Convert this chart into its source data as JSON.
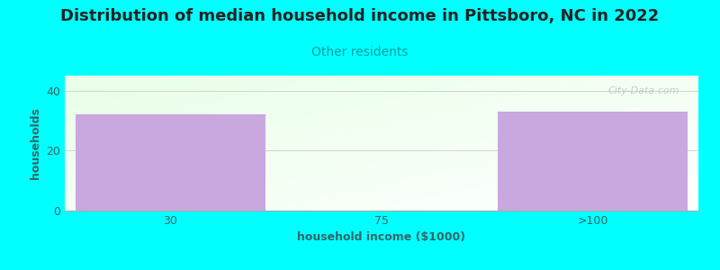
{
  "title": "Distribution of median household income in Pittsboro, NC in 2022",
  "subtitle": "Other residents",
  "xlabel": "household income ($1000)",
  "ylabel": "households",
  "background_color": "#00FFFF",
  "bar_color": "#c9a8e0",
  "categories": [
    "30",
    "75",
    ">100"
  ],
  "values": [
    32,
    0,
    33
  ],
  "ylim": [
    0,
    45
  ],
  "yticks": [
    0,
    20,
    40
  ],
  "title_fontsize": 13,
  "subtitle_fontsize": 10,
  "subtitle_color": "#00a0a0",
  "axis_label_fontsize": 9,
  "axis_label_color": "#336666",
  "tick_fontsize": 9,
  "tick_color": "#336666",
  "watermark": "City-Data.com"
}
